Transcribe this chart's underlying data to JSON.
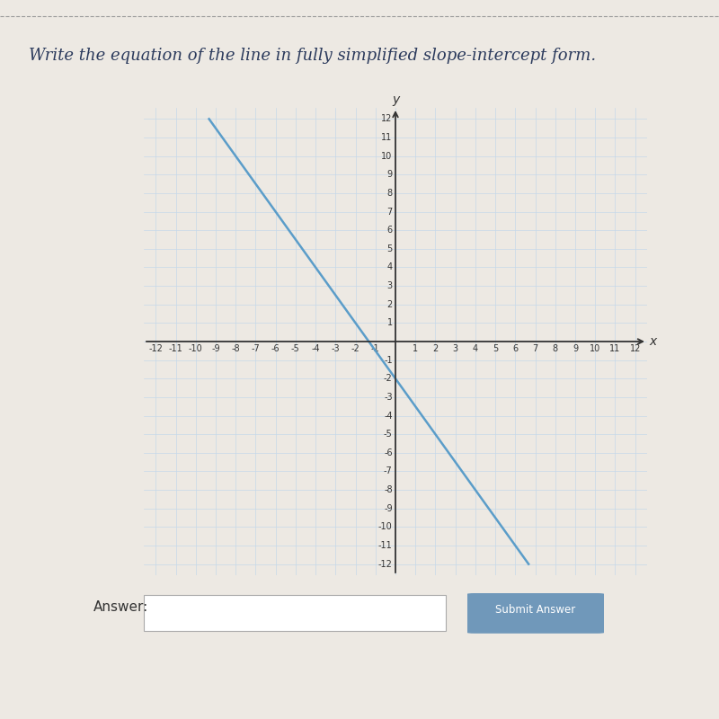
{
  "title": "Write the equation of the line in fully simplified slope-intercept form.",
  "title_fontsize": 13,
  "bg_color": "#ede9e3",
  "plot_bg_color": "#e8e4de",
  "grid_color": "#c5d8ea",
  "axis_color": "#333333",
  "line_color": "#5b9dc9",
  "slope": -1.5,
  "intercept": -2,
  "xmin": -12,
  "xmax": 12,
  "ymin": -12,
  "ymax": 12,
  "answer_label": "Answer:",
  "submit_label": "Submit Answer",
  "submit_color": "#7098ba",
  "input_box_color": "#ffffff",
  "bottom_black_color": "#1a1a1a",
  "xlabel": "x",
  "ylabel": "y",
  "tick_fontsize": 7,
  "label_fontsize": 10
}
